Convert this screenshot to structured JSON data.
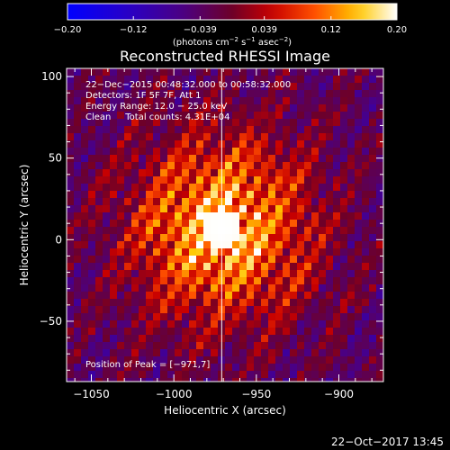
{
  "chart_data": {
    "type": "heatmap",
    "title": "Reconstructed RHESSI Image",
    "xlabel": "Heliocentric X (arcsec)",
    "ylabel": "Heliocentric Y (arcsec)",
    "xlim": [
      -1065,
      -873
    ],
    "ylim": [
      -87,
      105
    ],
    "x_ticks": [
      -1050,
      -1000,
      -950,
      -900
    ],
    "y_ticks": [
      -50,
      0,
      50,
      100
    ],
    "x_tick_labels": [
      "−1050",
      "−1000",
      "−950",
      "−900"
    ],
    "y_tick_labels": [
      "−50",
      "0",
      "50",
      "100"
    ],
    "colorbar": {
      "range": [
        -0.2,
        0.2
      ],
      "ticks": [
        -0.2,
        -0.12,
        -0.039,
        0.039,
        0.12,
        0.2
      ],
      "tick_labels": [
        "−0.20",
        "−0.12",
        "−0.039",
        "0.039",
        "0.12",
        "0.20"
      ],
      "units": "(photons cm",
      "units_parts": [
        "(photons cm",
        "−2",
        " s",
        "−1",
        " asec",
        "−2",
        ")"
      ],
      "colormap": [
        "#0000ff",
        "#4b0082",
        "#8b0000",
        "#ff4500",
        "#ffd700",
        "#ffffff"
      ]
    },
    "annotations": [
      "22−Dec−2015 00:48:32.000 to 00:58:32.000",
      "Detectors: 1F 5F 7F, Att 1",
      "Energy Range: 12.0 − 25.0 keV",
      "Clean     Total counts: 4.31E+04"
    ],
    "peak_label": "Position of Peak = [−971,7]",
    "peak_position": [
      -971,
      7
    ],
    "limb_line_x": -971
  },
  "footer": {
    "timestamp": "22−Oct−2017 13:45"
  },
  "colors": {
    "background": "#000000",
    "text": "#ffffff",
    "axis": "#ffffff"
  }
}
